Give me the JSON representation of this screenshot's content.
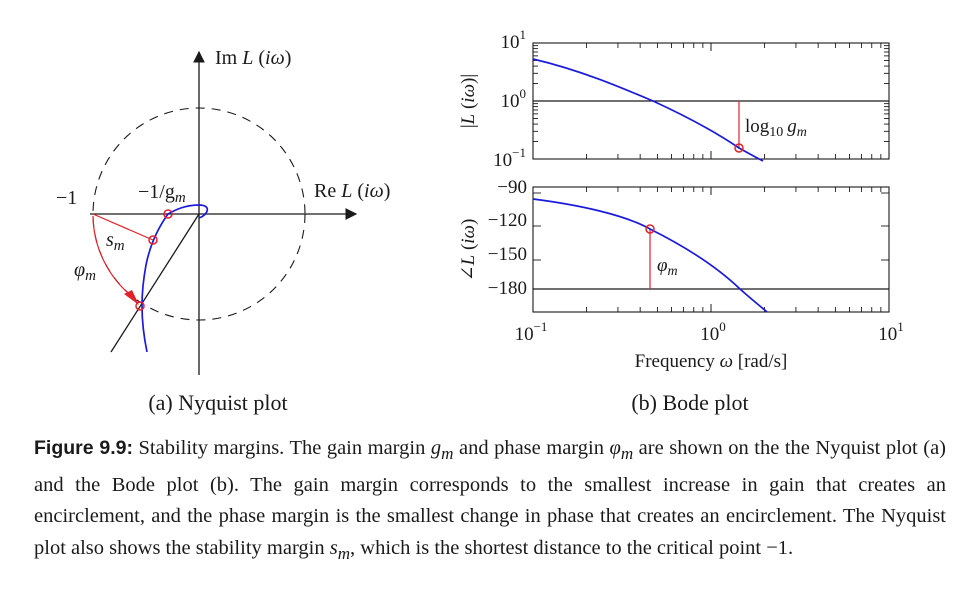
{
  "chart_data": [
    {
      "type": "line",
      "title": "",
      "subtitle": "(a) Nyquist plot",
      "xlabel": "Re L(iω)",
      "ylabel": "Im L(iω)",
      "grid": false,
      "annotations": {
        "minus_one": "−1",
        "minus_one_over_gm": "−1/g",
        "gm_sub": "m",
        "sm": "s",
        "sm_sub": "m",
        "phim": "φ",
        "phim_sub": "m"
      },
      "series": [
        {
          "values": [
            [
              0.0,
              -0.05
            ],
            [
              0.02,
              -0.12
            ],
            [
              -0.1,
              -0.18
            ],
            [
              -0.33,
              -0.18
            ],
            [
              -0.5,
              -0.4
            ],
            [
              -0.58,
              -0.8
            ],
            [
              -0.6,
              -1.2
            ]
          ]
        }
      ],
      "unit_circle": true,
      "critical_point": [
        -1,
        0
      ],
      "gain_margin_point": [
        -0.33,
        0
      ],
      "stability_margin_point": [
        -0.48,
        -0.48
      ],
      "phase_margin_point": [
        -0.58,
        -0.82
      ]
    },
    {
      "type": "line",
      "subtitle": "(b) Bode plot",
      "panel": "magnitude",
      "ylabel": "|L(iω)|",
      "xscale": "log",
      "yscale": "log",
      "xlim": [
        0.1,
        10
      ],
      "ylim": [
        0.1,
        10
      ],
      "yticks": [
        "10",
        "10",
        "10"
      ],
      "yticks_exp": [
        "1",
        "0",
        "−1"
      ],
      "annotation": "log",
      "annotation_sub": "10",
      "annotation_g": "g",
      "annotation_g_sub": "m",
      "gain_crossover": 0.45,
      "phase_crossover": 1.41,
      "series": [
        {
          "x": [
            0.1,
            0.2,
            0.3,
            0.45,
            0.7,
            1.0,
            1.41,
            2.0
          ],
          "y": [
            4.5,
            2.5,
            1.6,
            1.0,
            0.55,
            0.32,
            0.167,
            0.08
          ]
        }
      ]
    },
    {
      "type": "line",
      "panel": "phase",
      "ylabel": "∠L(iω)",
      "xlabel": "Frequency ω [rad/s]",
      "xscale": "log",
      "xlim": [
        0.1,
        10
      ],
      "ylim": [
        -200,
        -90
      ],
      "yticks": [
        -90,
        -120,
        -150,
        -180
      ],
      "ytick_labels": [
        "−90",
        "−120",
        "−150",
        "−180"
      ],
      "xticks": [
        "10",
        "10",
        "10"
      ],
      "xticks_exp": [
        "−1",
        "0",
        "1"
      ],
      "annotation": "φ",
      "annotation_sub": "m",
      "series": [
        {
          "x": [
            0.1,
            0.2,
            0.3,
            0.45,
            0.7,
            1.0,
            1.41,
            2.0
          ],
          "y": [
            -99,
            -104,
            -111,
            -121,
            -138,
            -155,
            -180,
            -200
          ]
        }
      ]
    }
  ],
  "caption": {
    "label": "Figure 9.9:",
    "t1": " Stability margins. The gain margin ",
    "gm": "g",
    "gm_sub": "m",
    "t2": " and phase margin ",
    "phim": "φ",
    "phim_sub": "m",
    "t3": " are shown on the the Nyquist plot (a) and the Bode plot (b). The gain margin corresponds to the smallest increase in gain that creates an encirclement, and the phase margin is the smallest change in phase that creates an encirclement. The Nyquist plot also shows the stability margin ",
    "sm": "s",
    "sm_sub": "m",
    "t4": ", which is the shortest distance to the critical point −1."
  },
  "colors": {
    "curve": "#1a1adc",
    "marker": "#e0222a",
    "axis": "#1a1a1a"
  }
}
